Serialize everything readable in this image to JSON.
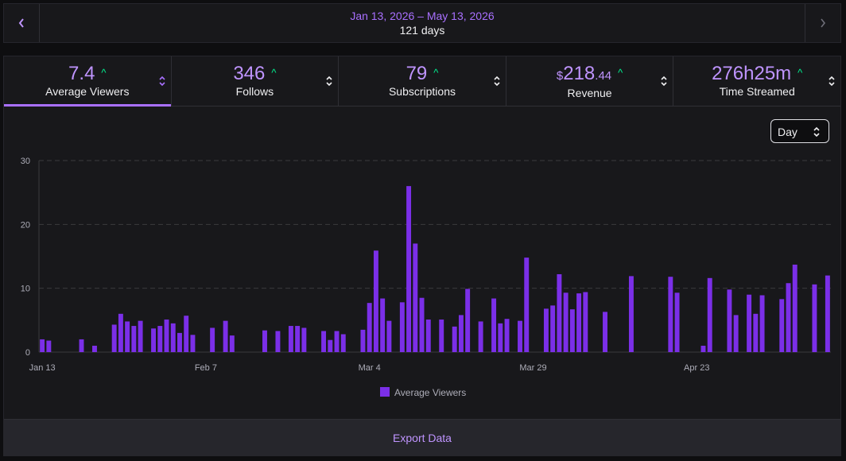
{
  "date_range": {
    "label": "Jan 13, 2026 – May 13, 2026",
    "days_label": "121 days",
    "prev_icon": "chevron-left-icon",
    "next_icon": "chevron-right-icon"
  },
  "metrics": [
    {
      "value": "7.4",
      "label": "Average Viewers",
      "trend": "up",
      "active": true
    },
    {
      "value": "346",
      "label": "Follows",
      "trend": "up",
      "active": false
    },
    {
      "value": "79",
      "label": "Subscriptions",
      "trend": "up",
      "active": false
    },
    {
      "currency": "$",
      "value": "218",
      "decimals": ".44",
      "label": "Revenue",
      "trend": "up",
      "active": false
    },
    {
      "value": "276h25m",
      "label": "Time Streamed",
      "trend": "up",
      "active": false
    }
  ],
  "granularity": {
    "selected": "Day"
  },
  "colors": {
    "accent": "#a970ff",
    "bar": "#7b2fe8",
    "trend_up": "#00f593"
  },
  "chart_data": {
    "type": "bar",
    "x_type": "date",
    "x_range": [
      "2026-01-13",
      "2026-05-13"
    ],
    "x_ticks": [
      "Jan 13",
      "Feb 7",
      "Mar 4",
      "Mar 29",
      "Apr 23"
    ],
    "ylim": [
      0,
      30
    ],
    "y_ticks": [
      0,
      10,
      20,
      30
    ],
    "grid": true,
    "legend_position": "bottom",
    "series": [
      {
        "name": "Average Viewers",
        "points": [
          [
            "2026-01-13",
            2
          ],
          [
            "2026-01-14",
            1.8
          ],
          [
            "2026-01-19",
            2
          ],
          [
            "2026-01-21",
            1
          ],
          [
            "2026-01-24",
            4.3
          ],
          [
            "2026-01-25",
            6
          ],
          [
            "2026-01-26",
            4.8
          ],
          [
            "2026-01-27",
            4.1
          ],
          [
            "2026-01-28",
            4.9
          ],
          [
            "2026-01-30",
            3.7
          ],
          [
            "2026-01-31",
            4.1
          ],
          [
            "2026-02-01",
            5.1
          ],
          [
            "2026-02-02",
            4.5
          ],
          [
            "2026-02-03",
            3
          ],
          [
            "2026-02-04",
            5.7
          ],
          [
            "2026-02-05",
            2.7
          ],
          [
            "2026-02-08",
            3.8
          ],
          [
            "2026-02-10",
            4.9
          ],
          [
            "2026-02-11",
            2.6
          ],
          [
            "2026-02-16",
            3.4
          ],
          [
            "2026-02-18",
            3.3
          ],
          [
            "2026-02-20",
            4.1
          ],
          [
            "2026-02-21",
            4.1
          ],
          [
            "2026-02-22",
            3.8
          ],
          [
            "2026-02-25",
            3.3
          ],
          [
            "2026-02-26",
            1.9
          ],
          [
            "2026-02-27",
            3.3
          ],
          [
            "2026-02-28",
            2.8
          ],
          [
            "2026-03-03",
            3.5
          ],
          [
            "2026-03-04",
            7.7
          ],
          [
            "2026-03-05",
            15.9
          ],
          [
            "2026-03-06",
            8.4
          ],
          [
            "2026-03-07",
            4.9
          ],
          [
            "2026-03-09",
            7.8
          ],
          [
            "2026-03-10",
            26
          ],
          [
            "2026-03-11",
            17
          ],
          [
            "2026-03-12",
            8.5
          ],
          [
            "2026-03-13",
            5.1
          ],
          [
            "2026-03-15",
            5.1
          ],
          [
            "2026-03-17",
            4
          ],
          [
            "2026-03-18",
            5.8
          ],
          [
            "2026-03-19",
            9.9
          ],
          [
            "2026-03-21",
            4.8
          ],
          [
            "2026-03-23",
            8.4
          ],
          [
            "2026-03-24",
            4.5
          ],
          [
            "2026-03-25",
            5.2
          ],
          [
            "2026-03-27",
            4.9
          ],
          [
            "2026-03-28",
            14.8
          ],
          [
            "2026-03-31",
            6.8
          ],
          [
            "2026-04-01",
            7.3
          ],
          [
            "2026-04-02",
            12.2
          ],
          [
            "2026-04-03",
            9.3
          ],
          [
            "2026-04-04",
            6.7
          ],
          [
            "2026-04-05",
            9.2
          ],
          [
            "2026-04-06",
            9.4
          ],
          [
            "2026-04-09",
            6.3
          ],
          [
            "2026-04-13",
            11.9
          ],
          [
            "2026-04-19",
            11.8
          ],
          [
            "2026-04-20",
            9.3
          ],
          [
            "2026-04-24",
            1
          ],
          [
            "2026-04-25",
            11.6
          ],
          [
            "2026-04-28",
            9.8
          ],
          [
            "2026-04-29",
            5.8
          ],
          [
            "2026-05-01",
            9
          ],
          [
            "2026-05-02",
            6
          ],
          [
            "2026-05-03",
            8.9
          ],
          [
            "2026-05-06",
            8.3
          ],
          [
            "2026-05-07",
            10.8
          ],
          [
            "2026-05-08",
            13.7
          ],
          [
            "2026-05-11",
            10.6
          ],
          [
            "2026-05-13",
            12
          ]
        ]
      }
    ]
  },
  "export": {
    "label": "Export Data"
  }
}
